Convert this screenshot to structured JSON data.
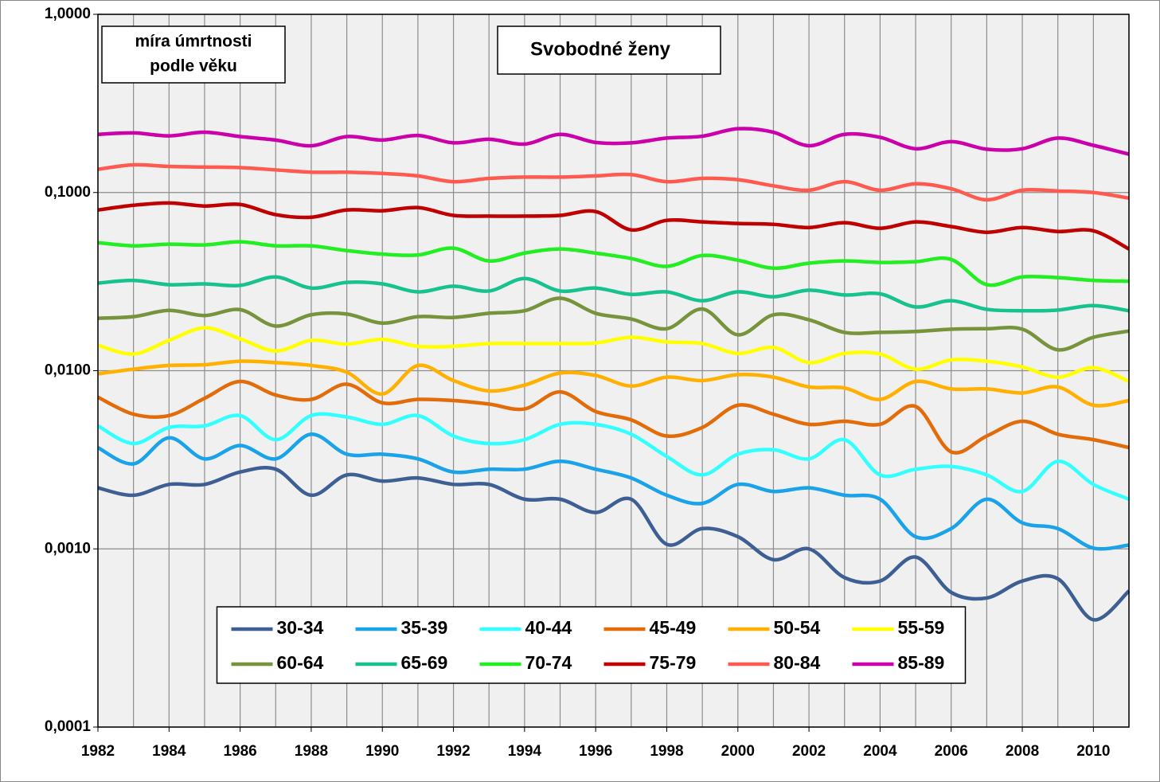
{
  "chart_data": {
    "type": "line",
    "title": "Svobodné ženy",
    "ylabel": [
      "míra úmrtnosti",
      "podle věku"
    ],
    "yscale": "log",
    "grid": true,
    "legend": "lower center",
    "x": [
      1982,
      1983,
      1984,
      1985,
      1986,
      1987,
      1988,
      1989,
      1990,
      1991,
      1992,
      1993,
      1994,
      1995,
      1996,
      1997,
      1998,
      1999,
      2000,
      2001,
      2002,
      2003,
      2004,
      2005,
      2006,
      2007,
      2008,
      2009,
      2010,
      2011
    ],
    "xlim": [
      1982,
      2011
    ],
    "xticks": [
      1982,
      1984,
      1986,
      1988,
      1990,
      1992,
      1994,
      1996,
      1998,
      2000,
      2002,
      2004,
      2006,
      2008,
      2010
    ],
    "ylim": [
      0.0001,
      1
    ],
    "yticks": [
      {
        "value": 0.0001,
        "label": "0,0001"
      },
      {
        "value": 0.001,
        "label": "0,0010"
      },
      {
        "value": 0.01,
        "label": "0,0100"
      },
      {
        "value": 0.1,
        "label": "0,1000"
      },
      {
        "value": 1,
        "label": "1,0000"
      }
    ],
    "series": [
      {
        "name": "30-34",
        "color": "#3d5f94",
        "values": [
          0.0022,
          0.002,
          0.0023,
          0.0023,
          0.0027,
          0.0028,
          0.002,
          0.0026,
          0.0024,
          0.0025,
          0.0023,
          0.0023,
          0.0019,
          0.0019,
          0.0016,
          0.0019,
          0.00106,
          0.0013,
          0.00117,
          0.00087,
          0.001,
          0.00069,
          0.00066,
          0.0009,
          0.00057,
          0.00053,
          0.00066,
          0.00068,
          0.0004,
          0.00058
        ]
      },
      {
        "name": "35-39",
        "color": "#1aa3e8",
        "values": [
          0.0037,
          0.003,
          0.0042,
          0.0032,
          0.0038,
          0.0032,
          0.0044,
          0.0034,
          0.0034,
          0.0032,
          0.0027,
          0.0028,
          0.0028,
          0.0031,
          0.0028,
          0.0025,
          0.002,
          0.0018,
          0.0023,
          0.0021,
          0.0022,
          0.002,
          0.0019,
          0.00117,
          0.0013,
          0.0019,
          0.0014,
          0.0013,
          0.00101,
          0.00105
        ]
      },
      {
        "name": "40-44",
        "color": "#33ffff",
        "values": [
          0.0049,
          0.0039,
          0.0048,
          0.0049,
          0.0056,
          0.0041,
          0.0056,
          0.0055,
          0.005,
          0.0056,
          0.0043,
          0.0039,
          0.0041,
          0.005,
          0.005,
          0.0044,
          0.0033,
          0.0026,
          0.0034,
          0.0036,
          0.0032,
          0.0041,
          0.0026,
          0.0028,
          0.0029,
          0.0026,
          0.0021,
          0.0031,
          0.0023,
          0.0019
        ]
      },
      {
        "name": "45-49",
        "color": "#e36c0a",
        "values": [
          0.0071,
          0.0057,
          0.0056,
          0.007,
          0.0087,
          0.0073,
          0.0069,
          0.0084,
          0.0066,
          0.0069,
          0.0068,
          0.0065,
          0.0061,
          0.0076,
          0.0059,
          0.0053,
          0.0043,
          0.0048,
          0.0064,
          0.0057,
          0.005,
          0.0052,
          0.005,
          0.0063,
          0.0035,
          0.0043,
          0.0052,
          0.0044,
          0.0041,
          0.0037
        ]
      },
      {
        "name": "50-54",
        "color": "#ffb000",
        "values": [
          0.0096,
          0.0102,
          0.0107,
          0.0108,
          0.0113,
          0.0111,
          0.0107,
          0.0098,
          0.0074,
          0.0107,
          0.0088,
          0.0077,
          0.0083,
          0.0097,
          0.0094,
          0.0082,
          0.0092,
          0.0088,
          0.0095,
          0.0092,
          0.0081,
          0.008,
          0.0069,
          0.0087,
          0.0079,
          0.0079,
          0.0075,
          0.0081,
          0.0064,
          0.0068
        ]
      },
      {
        "name": "55-59",
        "color": "#ffff00",
        "values": [
          0.0139,
          0.0124,
          0.0148,
          0.0174,
          0.0151,
          0.0129,
          0.0148,
          0.0141,
          0.015,
          0.0137,
          0.0137,
          0.0142,
          0.0142,
          0.0142,
          0.0143,
          0.0154,
          0.0145,
          0.0142,
          0.0125,
          0.0135,
          0.0111,
          0.0125,
          0.0124,
          0.0102,
          0.0115,
          0.0113,
          0.0105,
          0.0092,
          0.0104,
          0.0087
        ]
      },
      {
        "name": "60-64",
        "color": "#77933c",
        "values": [
          0.0197,
          0.0201,
          0.0218,
          0.0204,
          0.022,
          0.0178,
          0.0206,
          0.0208,
          0.0185,
          0.0201,
          0.0199,
          0.021,
          0.0217,
          0.0255,
          0.021,
          0.0195,
          0.0172,
          0.0222,
          0.0159,
          0.0206,
          0.0193,
          0.0164,
          0.0164,
          0.0166,
          0.0171,
          0.0172,
          0.0171,
          0.0131,
          0.0154,
          0.0167
        ]
      },
      {
        "name": "65-69",
        "color": "#18c28e",
        "values": [
          0.031,
          0.0321,
          0.0304,
          0.0307,
          0.0301,
          0.0336,
          0.0291,
          0.0313,
          0.0307,
          0.0277,
          0.0298,
          0.028,
          0.0329,
          0.028,
          0.0291,
          0.0268,
          0.0277,
          0.0247,
          0.0277,
          0.026,
          0.0283,
          0.0266,
          0.027,
          0.0228,
          0.0247,
          0.0221,
          0.0217,
          0.0219,
          0.0232,
          0.0217
        ]
      },
      {
        "name": "70-74",
        "color": "#22ee22",
        "values": [
          0.0523,
          0.0502,
          0.0513,
          0.0508,
          0.0529,
          0.0502,
          0.0502,
          0.0472,
          0.0451,
          0.0446,
          0.0487,
          0.0413,
          0.0457,
          0.0482,
          0.0457,
          0.0426,
          0.0385,
          0.0443,
          0.0417,
          0.0376,
          0.0401,
          0.0413,
          0.0405,
          0.0409,
          0.0421,
          0.0304,
          0.0336,
          0.0333,
          0.0321,
          0.0318
        ]
      },
      {
        "name": "75-79",
        "color": "#c00000",
        "values": [
          0.0798,
          0.0848,
          0.0874,
          0.084,
          0.0857,
          0.0751,
          0.0727,
          0.0798,
          0.079,
          0.0823,
          0.0744,
          0.0737,
          0.0737,
          0.0744,
          0.0782,
          0.0617,
          0.0698,
          0.0684,
          0.067,
          0.0663,
          0.0636,
          0.0677,
          0.063,
          0.0684,
          0.0644,
          0.0598,
          0.0636,
          0.0604,
          0.061,
          0.0482
        ]
      },
      {
        "name": "80-84",
        "color": "#ff5a50",
        "values": [
          0.135,
          0.143,
          0.14,
          0.139,
          0.138,
          0.134,
          0.13,
          0.13,
          0.128,
          0.124,
          0.115,
          0.12,
          0.122,
          0.122,
          0.124,
          0.126,
          0.115,
          0.12,
          0.118,
          0.109,
          0.103,
          0.115,
          0.103,
          0.112,
          0.105,
          0.091,
          0.103,
          0.102,
          0.1,
          0.093
        ]
      },
      {
        "name": "85-89",
        "color": "#cc00aa",
        "values": [
          0.212,
          0.216,
          0.208,
          0.218,
          0.206,
          0.197,
          0.183,
          0.206,
          0.197,
          0.209,
          0.19,
          0.199,
          0.187,
          0.212,
          0.191,
          0.19,
          0.202,
          0.207,
          0.228,
          0.218,
          0.183,
          0.212,
          0.204,
          0.176,
          0.193,
          0.175,
          0.176,
          0.202,
          0.184,
          0.164
        ]
      }
    ]
  }
}
